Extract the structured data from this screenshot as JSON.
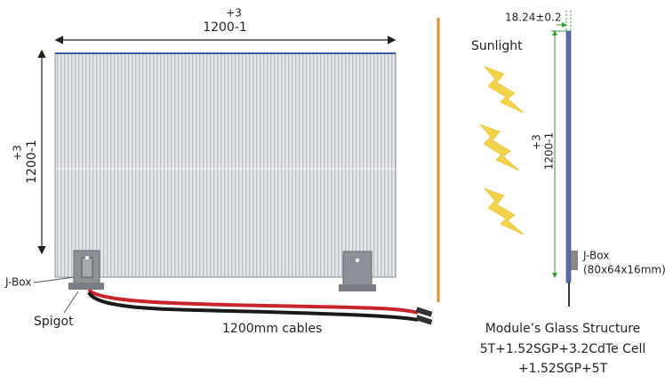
{
  "front_view": {
    "width_dimension": {
      "tolerance": "+3",
      "value": "1200-1"
    },
    "height_dimension": {
      "tolerance": "+3",
      "value": "1200-1"
    },
    "labels": {
      "j_box": "J-Box",
      "spigot": "Spigot",
      "cables": "1200mm cables"
    }
  },
  "side_view": {
    "sunlight": "Sunlight",
    "thickness": "18.24±0.2",
    "height_dimension": {
      "tolerance": "+3",
      "value": "1200-1"
    },
    "j_box": {
      "label": "J-Box",
      "size": "(80x64x16mm)"
    },
    "glass_structure": {
      "title": "Module’s Glass Structure",
      "lines": [
        "5T+1.52SGP+3.2CdTe Cell",
        "+1.52SGP+5T"
      ]
    }
  }
}
